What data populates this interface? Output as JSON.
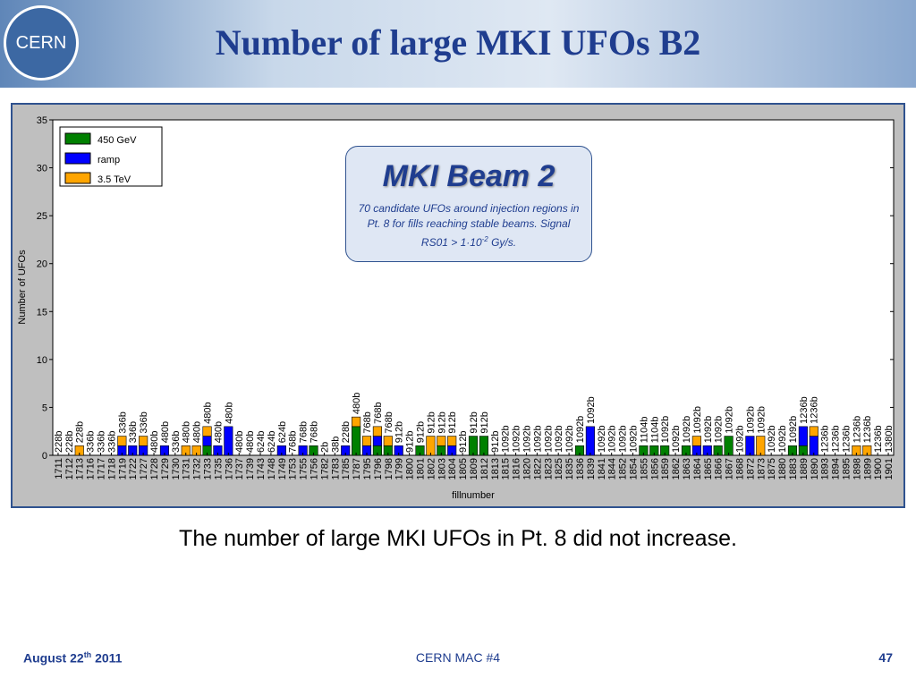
{
  "header": {
    "logo": "CERN",
    "title": "Number of large MKI UFOs B2"
  },
  "chart_data": {
    "type": "bar",
    "stacked": true,
    "xlabel": "fillnumber",
    "ylabel": "Number of UFOs",
    "ylim": [
      0,
      35
    ],
    "yticks": [
      0,
      5,
      10,
      15,
      20,
      25,
      30,
      35
    ],
    "legend": "upper left",
    "categories": [
      "1711",
      "1712",
      "1713",
      "1716",
      "1717",
      "1718",
      "1719",
      "1722",
      "1727",
      "1728",
      "1729",
      "1730",
      "1731",
      "1732",
      "1733",
      "1735",
      "1736",
      "1737",
      "1739",
      "1743",
      "1748",
      "1749",
      "1753",
      "1755",
      "1756",
      "1782",
      "1783",
      "1785",
      "1787",
      "1795",
      "1796",
      "1798",
      "1799",
      "1800",
      "1801",
      "1802",
      "1803",
      "1804",
      "1805",
      "1809",
      "1812",
      "1813",
      "1815",
      "1816",
      "1820",
      "1822",
      "1823",
      "1825",
      "1835",
      "1836",
      "1839",
      "1841",
      "1844",
      "1852",
      "1854",
      "1855",
      "1856",
      "1859",
      "1862",
      "1863",
      "1864",
      "1865",
      "1866",
      "1867",
      "1868",
      "1872",
      "1873",
      "1875",
      "1880",
      "1883",
      "1889",
      "1890",
      "1893",
      "1894",
      "1895",
      "1898",
      "1899",
      "1900",
      "1901"
    ],
    "bunch_labels": [
      "228b",
      "228b",
      "228b",
      "336b",
      "336b",
      "336b",
      "336b",
      "336b",
      "336b",
      "480b",
      "480b",
      "336b",
      "480b",
      "480b",
      "480b",
      "480b",
      "480b",
      "480b",
      "480b",
      "624b",
      "624b",
      "624b",
      "768b",
      "768b",
      "768b",
      "2b",
      "38b",
      "228b",
      "480b",
      "768b",
      "768b",
      "768b",
      "912b",
      "912b",
      "912b",
      "912b",
      "912b",
      "912b",
      "912b",
      "912b",
      "912b",
      "912b",
      "1092b",
      "1092b",
      "1092b",
      "1092b",
      "1092b",
      "1092b",
      "1092b",
      "1092b",
      "1092b",
      "1092b",
      "1092b",
      "1092b",
      "1092b",
      "1104b",
      "1104b",
      "1092b",
      "1092b",
      "1092b",
      "1092b",
      "1092b",
      "1092b",
      "1092b",
      "1092b",
      "1092b",
      "1092b",
      "1092b",
      "1092b",
      "1092b",
      "1236b",
      "1236b",
      "1236b",
      "1236b",
      "1236b",
      "1236b",
      "1236b",
      "1236b",
      "1380b"
    ],
    "series": [
      {
        "name": "450 GeV",
        "color": "#008000",
        "values": [
          0,
          0,
          0,
          0,
          0,
          0,
          0,
          0,
          0,
          0,
          0,
          0,
          0,
          0,
          1,
          0,
          0,
          0,
          0,
          0,
          0,
          0,
          0,
          0,
          1,
          0,
          0,
          0,
          3,
          0,
          1,
          1,
          0,
          0,
          1,
          0,
          1,
          0,
          0,
          2,
          2,
          0,
          0,
          0,
          0,
          0,
          0,
          0,
          0,
          1,
          0,
          0,
          0,
          0,
          0,
          1,
          1,
          1,
          0,
          1,
          0,
          0,
          1,
          2,
          0,
          0,
          0,
          0,
          0,
          1,
          1,
          0,
          0,
          0,
          0,
          0,
          0,
          0,
          0
        ]
      },
      {
        "name": "ramp",
        "color": "#0000ff",
        "values": [
          0,
          0,
          0,
          0,
          0,
          0,
          1,
          1,
          1,
          0,
          1,
          0,
          0,
          0,
          1,
          1,
          3,
          0,
          0,
          0,
          0,
          1,
          0,
          1,
          0,
          0,
          0,
          1,
          0,
          1,
          1,
          0,
          1,
          0,
          0,
          0,
          0,
          1,
          0,
          0,
          0,
          0,
          0,
          0,
          0,
          0,
          0,
          0,
          0,
          0,
          3,
          0,
          0,
          0,
          0,
          0,
          0,
          0,
          0,
          0,
          1,
          1,
          0,
          0,
          0,
          2,
          0,
          0,
          0,
          0,
          2,
          2,
          0,
          0,
          0,
          0,
          0,
          0,
          0
        ]
      },
      {
        "name": "3.5 TeV",
        "color": "#ffa500",
        "values": [
          0,
          0,
          1,
          0,
          0,
          0,
          1,
          0,
          1,
          0,
          0,
          0,
          1,
          1,
          1,
          0,
          0,
          0,
          0,
          0,
          0,
          0,
          0,
          0,
          0,
          0,
          0,
          0,
          1,
          1,
          1,
          1,
          0,
          0,
          0,
          2,
          1,
          1,
          0,
          0,
          0,
          0,
          0,
          0,
          0,
          0,
          0,
          0,
          0,
          0,
          0,
          0,
          0,
          0,
          0,
          0,
          0,
          0,
          0,
          0,
          1,
          0,
          0,
          0,
          0,
          0,
          2,
          0,
          0,
          0,
          0,
          1,
          0,
          0,
          0,
          1,
          1,
          0,
          0
        ]
      }
    ]
  },
  "inset": {
    "title": "MKI Beam 2",
    "text": "70 candidate UFOs around injection regions in Pt. 8 for fills reaching stable beams. Signal RS01 > 1·10",
    "sup": "-2",
    "text_end": " Gy/s."
  },
  "caption": "The number of large MKI UFOs in Pt. 8 did not increase.",
  "footer": {
    "date": "August 22",
    "date_sup": "th",
    "date_end": " 2011",
    "center": "CERN MAC #4",
    "page": "47"
  }
}
